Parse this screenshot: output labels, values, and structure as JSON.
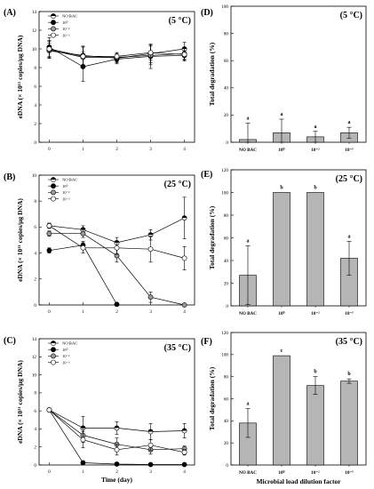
{
  "figure": {
    "x_axis_label_left": "Time (day)",
    "x_axis_label_right": "Microbial load dilution factor",
    "y_axis_label_left": "eDNA (× 10¹¹ copies/μg DNA)",
    "y_axis_label_right": "Total degradation (%)"
  },
  "chart_data": [
    {
      "id": "A",
      "letter": "(A)",
      "temp": "(5 °C)",
      "type": "line",
      "xlabel": "",
      "ylabel": "eDNA (× 10¹¹ copies/μg DNA)",
      "x": [
        0,
        1,
        2,
        3,
        4
      ],
      "xlim": [
        -0.3,
        4.3
      ],
      "ylim": [
        0,
        14
      ],
      "yticks": [
        0,
        2,
        4,
        6,
        8,
        10,
        12,
        14
      ],
      "legend": [
        "NO BAC",
        "10⁰",
        "10⁻²",
        "10⁻⁵"
      ],
      "series": [
        {
          "name": "NO BAC",
          "marker": "half",
          "values": [
            9.8,
            9.3,
            9.0,
            9.5,
            10.0
          ],
          "err": [
            0.8,
            1.0,
            0.5,
            1.0,
            0.7
          ]
        },
        {
          "name": "10⁰",
          "marker": "filled",
          "values": [
            10.2,
            8.1,
            8.9,
            9.2,
            9.3
          ],
          "err": [
            1.0,
            1.6,
            0.5,
            1.3,
            0.5
          ]
        },
        {
          "name": "10⁻²",
          "marker": "gray",
          "values": [
            9.9,
            9.1,
            9.1,
            9.3,
            9.5
          ],
          "err": [
            0.9,
            1.1,
            0.5,
            1.0,
            0.6
          ]
        },
        {
          "name": "10⁻⁵",
          "marker": "open",
          "values": [
            10.0,
            9.2,
            9.2,
            9.6,
            9.4
          ],
          "err": [
            0.9,
            1.0,
            0.4,
            0.8,
            0.7
          ]
        }
      ]
    },
    {
      "id": "B",
      "letter": "(B)",
      "temp": "(25 °C)",
      "type": "line",
      "xlabel": "",
      "ylabel": "eDNA (× 10¹¹ copies/μg DNA)",
      "x": [
        0,
        1,
        2,
        3,
        4
      ],
      "xlim": [
        -0.3,
        4.3
      ],
      "ylim": [
        0,
        10
      ],
      "yticks": [
        0,
        2,
        4,
        6,
        8,
        10
      ],
      "legend": [
        "NO BAC",
        "10⁰",
        "10⁻²",
        "10⁻⁵"
      ],
      "series": [
        {
          "name": "NO BAC",
          "marker": "half",
          "values": [
            6.1,
            5.8,
            4.8,
            5.4,
            6.7
          ],
          "err": [
            0.2,
            0.3,
            0.4,
            0.4,
            1.6
          ]
        },
        {
          "name": "10⁰",
          "marker": "filled",
          "values": [
            4.2,
            4.6,
            0.05,
            null,
            null
          ],
          "err": [
            0.2,
            0.3,
            0,
            0,
            0
          ]
        },
        {
          "name": "10⁻²",
          "marker": "gray",
          "values": [
            5.5,
            5.5,
            3.8,
            0.6,
            0.0
          ],
          "err": [
            0.2,
            0.3,
            0.5,
            0.4,
            0
          ]
        },
        {
          "name": "10⁻⁵",
          "marker": "open",
          "values": [
            6.1,
            4.4,
            4.4,
            4.3,
            3.6
          ],
          "err": [
            0.2,
            0.4,
            0.5,
            1.0,
            0.9
          ]
        }
      ]
    },
    {
      "id": "C",
      "letter": "(C)",
      "temp": "(35 °C)",
      "type": "line",
      "xlabel": "Time (day)",
      "ylabel": "eDNA (× 10¹¹ copies/μg DNA)",
      "x": [
        0,
        1,
        2,
        3,
        4
      ],
      "xlim": [
        -0.3,
        4.3
      ],
      "ylim": [
        0,
        14
      ],
      "yticks": [
        0,
        2,
        4,
        6,
        8,
        10,
        12,
        14
      ],
      "legend": [
        "NO BAC",
        "10⁰",
        "10⁻²",
        "10⁻⁵"
      ],
      "series": [
        {
          "name": "NO BAC",
          "marker": "half",
          "values": [
            6.1,
            4.1,
            4.1,
            3.7,
            3.8
          ],
          "err": [
            0.2,
            1.3,
            0.7,
            0.9,
            0.8
          ]
        },
        {
          "name": "10⁰",
          "marker": "filled",
          "values": [
            6.1,
            0.25,
            0.1,
            0.05,
            0.05
          ],
          "err": [
            0.2,
            0.1,
            0.05,
            0.05,
            0.05
          ]
        },
        {
          "name": "10⁻²",
          "marker": "gray",
          "values": [
            6.1,
            3.3,
            2.3,
            1.7,
            1.8
          ],
          "err": [
            0.2,
            0.8,
            0.7,
            0.5,
            0.3
          ]
        },
        {
          "name": "10⁻⁵",
          "marker": "open",
          "values": [
            6.1,
            2.8,
            1.7,
            2.2,
            1.4
          ],
          "err": [
            0.2,
            0.9,
            0.6,
            0.6,
            0.3
          ]
        }
      ]
    },
    {
      "id": "D",
      "letter": "(D)",
      "temp": "(5 °C)",
      "type": "bar",
      "xlabel": "",
      "ylabel": "Total degradation (%)",
      "categories": [
        "NO BAC",
        "10⁰",
        "10⁻²",
        "10⁻⁵"
      ],
      "ylim": [
        0,
        100
      ],
      "yticks": [
        0,
        20,
        40,
        60,
        80,
        100
      ],
      "values": [
        2,
        7,
        4,
        7
      ],
      "err": [
        12,
        10,
        4,
        4
      ],
      "letters": [
        "a",
        "a",
        "a",
        "a"
      ]
    },
    {
      "id": "E",
      "letter": "(E)",
      "temp": "(25 °C)",
      "type": "bar",
      "xlabel": "",
      "ylabel": "Total degradation (%)",
      "categories": [
        "NO BAC",
        "10⁰",
        "10⁻²",
        "10⁻⁵"
      ],
      "ylim": [
        0,
        120
      ],
      "yticks": [
        0,
        20,
        40,
        60,
        80,
        100,
        120
      ],
      "values": [
        27,
        100,
        100,
        42
      ],
      "err": [
        26,
        0,
        0,
        15
      ],
      "letters": [
        "a",
        "b",
        "b",
        "a"
      ]
    },
    {
      "id": "F",
      "letter": "(F)",
      "temp": "(35 °C)",
      "type": "bar",
      "xlabel": "Microbial load dilution factor",
      "ylabel": "Total degradation (%)",
      "categories": [
        "NO BAC",
        "10⁰",
        "10⁻²",
        "10⁻⁵"
      ],
      "ylim": [
        0,
        120
      ],
      "yticks": [
        0,
        20,
        40,
        60,
        80,
        100,
        120
      ],
      "values": [
        38,
        99,
        72,
        76
      ],
      "err": [
        13,
        0.5,
        8,
        2
      ],
      "letters": [
        "a",
        "c",
        "b",
        "b"
      ]
    }
  ]
}
